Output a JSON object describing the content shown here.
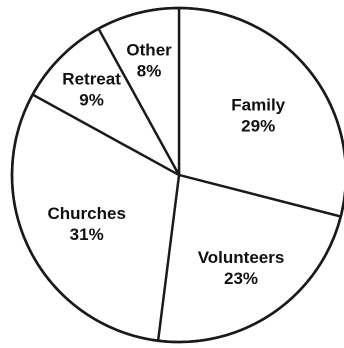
{
  "chart_data": {
    "type": "pie",
    "categories": [
      "Family",
      "Volunteers",
      "Churches",
      "Retreat",
      "Other"
    ],
    "values": [
      29,
      23,
      31,
      9,
      8
    ],
    "value_labels": [
      "29%",
      "23%",
      "31%",
      "9%",
      "8%"
    ],
    "start": "12 o'clock",
    "direction": "clockwise",
    "colors": {
      "fill": "#ffffff",
      "stroke": "#1a1a1a",
      "text": "#111111"
    },
    "legend": "none"
  }
}
